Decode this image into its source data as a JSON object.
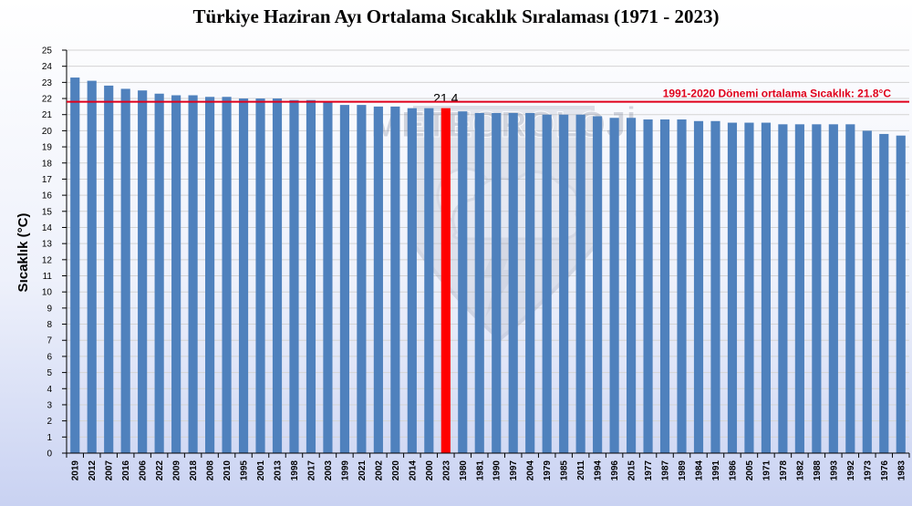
{
  "chart_data": {
    "type": "bar",
    "title": "Türkiye Haziran Ayı Ortalama Sıcaklık Sıralaması (1971 - 2023)",
    "ylabel": "Sıcaklık (°C)",
    "xlabel": "",
    "ylim": [
      0,
      25
    ],
    "yticks": [
      0,
      1,
      2,
      3,
      4,
      5,
      6,
      7,
      8,
      9,
      10,
      11,
      12,
      13,
      14,
      15,
      16,
      17,
      18,
      19,
      20,
      21,
      22,
      23,
      24,
      25
    ],
    "grid": true,
    "categories": [
      "2019",
      "2012",
      "2007",
      "2016",
      "2006",
      "2022",
      "2009",
      "2018",
      "2008",
      "2010",
      "1995",
      "2001",
      "2013",
      "1998",
      "2017",
      "2003",
      "1999",
      "2021",
      "2002",
      "2020",
      "2014",
      "2000",
      "2023",
      "1980",
      "1981",
      "1990",
      "1997",
      "2004",
      "1979",
      "1985",
      "2011",
      "1994",
      "1996",
      "2015",
      "1977",
      "1987",
      "1989",
      "1984",
      "1991",
      "1986",
      "2005",
      "1971",
      "1978",
      "1982",
      "1988",
      "1993",
      "1992",
      "1973",
      "1976",
      "1983"
    ],
    "values": [
      23.3,
      23.1,
      22.8,
      22.6,
      22.5,
      22.3,
      22.2,
      22.2,
      22.1,
      22.1,
      22.0,
      22.0,
      22.0,
      21.9,
      21.9,
      21.8,
      21.6,
      21.6,
      21.5,
      21.5,
      21.4,
      21.4,
      21.4,
      21.2,
      21.1,
      21.1,
      21.1,
      21.1,
      21.0,
      21.0,
      21.0,
      20.9,
      20.8,
      20.8,
      20.7,
      20.7,
      20.7,
      20.6,
      20.6,
      20.5,
      20.5,
      20.5,
      20.4,
      20.4,
      20.4,
      20.4,
      20.4,
      20.0,
      19.8,
      19.7
    ],
    "highlight": {
      "category": "2023",
      "value_label": "21.4",
      "color": "#ff0000"
    },
    "bar_color": "#4f81bd",
    "reference_line": {
      "value": 21.8,
      "label": "1991-2020 Dönemi ortalama Sıcaklık: 21.8°C",
      "color": "#e0001b"
    },
    "watermark": {
      "text": "METEOROLOJİ"
    }
  }
}
